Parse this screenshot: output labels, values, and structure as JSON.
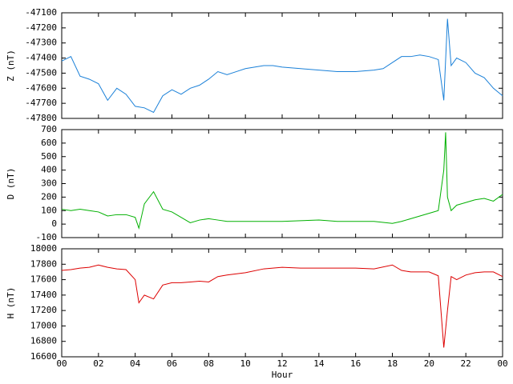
{
  "chart_data": [
    {
      "type": "line",
      "ylabel": "Z (nT)",
      "color": "#1a80d8",
      "x": [
        0,
        0.5,
        1,
        1.5,
        2,
        2.5,
        3,
        3.5,
        4,
        4.5,
        5,
        5.5,
        6,
        6.5,
        7,
        7.5,
        8,
        8.5,
        9,
        9.5,
        10,
        10.5,
        11,
        11.5,
        12,
        13,
        14,
        15,
        16,
        17,
        17.5,
        18,
        18.5,
        19,
        19.5,
        20,
        20.5,
        20.8,
        21,
        21.2,
        21.5,
        22,
        22.5,
        23,
        23.5,
        24
      ],
      "values": [
        -47420,
        -47390,
        -47520,
        -47540,
        -47570,
        -47680,
        -47600,
        -47640,
        -47720,
        -47730,
        -47760,
        -47650,
        -47610,
        -47640,
        -47600,
        -47580,
        -47540,
        -47490,
        -47510,
        -47490,
        -47470,
        -47460,
        -47450,
        -47450,
        -47460,
        -47470,
        -47480,
        -47490,
        -47490,
        -47480,
        -47470,
        -47430,
        -47390,
        -47390,
        -47380,
        -47390,
        -47410,
        -47680,
        -47140,
        -47450,
        -47400,
        -47430,
        -47500,
        -47530,
        -47600,
        -47650
      ],
      "xlim": [
        0,
        24
      ],
      "xticks": [
        0,
        2,
        4,
        6,
        8,
        10,
        12,
        14,
        16,
        18,
        20,
        22,
        24
      ],
      "ylim": [
        -47800,
        -47100
      ],
      "yticks": [
        -47800,
        -47700,
        -47600,
        -47500,
        -47400,
        -47300,
        -47200,
        -47100
      ]
    },
    {
      "type": "line",
      "ylabel": "D (nT)",
      "color": "#00b000",
      "x": [
        0,
        0.5,
        1,
        1.5,
        2,
        2.5,
        3,
        3.5,
        4,
        4.2,
        4.5,
        5,
        5.5,
        6,
        6.5,
        7,
        7.5,
        8,
        8.5,
        9,
        10,
        11,
        12,
        13,
        14,
        15,
        16,
        17,
        18,
        18.5,
        19,
        19.5,
        20,
        20.5,
        20.8,
        20.9,
        21,
        21.2,
        21.5,
        22,
        22.5,
        23,
        23.5,
        24
      ],
      "values": [
        110,
        100,
        110,
        100,
        90,
        60,
        70,
        70,
        50,
        -30,
        150,
        240,
        110,
        90,
        50,
        10,
        30,
        40,
        30,
        20,
        20,
        20,
        20,
        25,
        30,
        20,
        20,
        20,
        5,
        20,
        40,
        60,
        80,
        100,
        400,
        680,
        200,
        100,
        140,
        160,
        180,
        190,
        170,
        220
      ],
      "xlim": [
        0,
        24
      ],
      "xticks": [
        0,
        2,
        4,
        6,
        8,
        10,
        12,
        14,
        16,
        18,
        20,
        22,
        24
      ],
      "ylim": [
        -100,
        700
      ],
      "yticks": [
        -100,
        0,
        100,
        200,
        300,
        400,
        500,
        600,
        700
      ]
    },
    {
      "type": "line",
      "ylabel": "H (nT)",
      "xlabel": "Hour",
      "color": "#dd0000",
      "x": [
        0,
        0.5,
        1,
        1.5,
        2,
        2.5,
        3,
        3.5,
        4,
        4.2,
        4.5,
        5,
        5.5,
        6,
        6.5,
        7,
        7.5,
        8,
        8.5,
        9,
        10,
        11,
        12,
        13,
        14,
        15,
        16,
        17,
        18,
        18.5,
        19,
        19.5,
        20,
        20.5,
        20.8,
        21,
        21.2,
        21.5,
        22,
        22.5,
        23,
        23.5,
        24
      ],
      "values": [
        17720,
        17730,
        17750,
        17760,
        17790,
        17760,
        17740,
        17730,
        17600,
        17300,
        17400,
        17350,
        17530,
        17560,
        17560,
        17570,
        17580,
        17570,
        17640,
        17660,
        17690,
        17740,
        17760,
        17750,
        17750,
        17750,
        17750,
        17740,
        17790,
        17720,
        17700,
        17700,
        17700,
        17650,
        16720,
        17200,
        17640,
        17600,
        17660,
        17690,
        17700,
        17700,
        17640
      ],
      "xlim": [
        0,
        24
      ],
      "xticks": [
        {
          "value": 0,
          "label": "00"
        },
        {
          "value": 2,
          "label": "02"
        },
        {
          "value": 4,
          "label": "04"
        },
        {
          "value": 6,
          "label": "06"
        },
        {
          "value": 8,
          "label": "08"
        },
        10,
        12,
        14,
        16,
        18,
        20,
        22,
        {
          "value": 24,
          "label": "00"
        }
      ],
      "ylim": [
        16600,
        18000
      ],
      "yticks": [
        16600,
        16800,
        17000,
        17200,
        17400,
        17600,
        17800,
        18000
      ]
    }
  ]
}
